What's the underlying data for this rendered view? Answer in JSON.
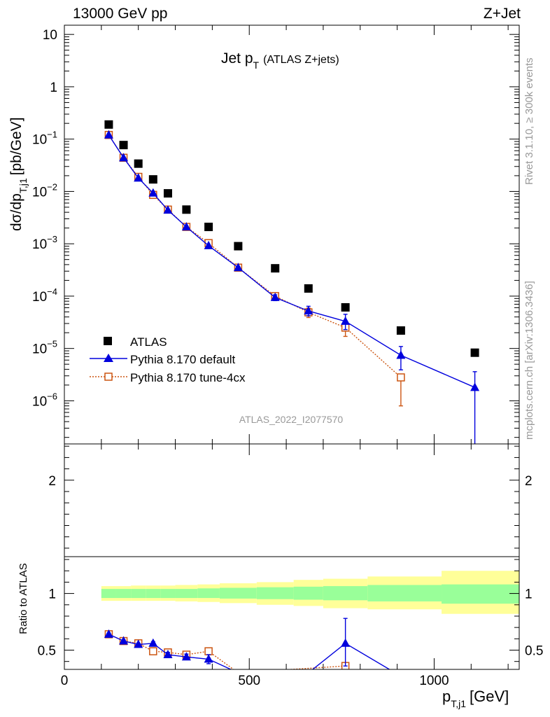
{
  "header": {
    "left": "13000 GeV pp",
    "right": "Z+Jet"
  },
  "side_labels": {
    "rivet": "Rivet 3.1.10, ≥ 300k events",
    "mcplots": "mcplots.cern.ch [arXiv:1306.3436]"
  },
  "chart_data": [
    {
      "type": "scatter",
      "title": "Jet p",
      "title_sub": "T",
      "title_suffix": "(ATLAS Z+jets)",
      "analysis_id": "ATLAS_2022_I2077570",
      "ylabel": "dσ/dp",
      "ylabel_sub": "T,j1",
      "ylabel_unit": "[pb/GeV]",
      "yscale": "log",
      "xlim": [
        0,
        1230
      ],
      "ylim": [
        1.5e-07,
        15
      ],
      "ytick_labels": [
        {
          "v": 10,
          "m": "10",
          "e": ""
        },
        {
          "v": 1,
          "m": "1",
          "e": ""
        },
        {
          "v": 0.1,
          "m": "10",
          "e": "−1"
        },
        {
          "v": 0.01,
          "m": "10",
          "e": "−2"
        },
        {
          "v": 0.001,
          "m": "10",
          "e": "−3"
        },
        {
          "v": 0.0001,
          "m": "10",
          "e": "−4"
        },
        {
          "v": 1e-05,
          "m": "10",
          "e": "−5"
        },
        {
          "v": 1e-06,
          "m": "10",
          "e": "−6"
        }
      ],
      "legend": {
        "position": "bottom-left",
        "entries": [
          "ATLAS",
          "Pythia 8.170 default",
          "Pythia 8.170 tune-4cx"
        ]
      },
      "series": [
        {
          "name": "ATLAS",
          "color": "#000000",
          "marker": "square-filled",
          "x": [
            120,
            160,
            200,
            240,
            280,
            330,
            390,
            470,
            570,
            660,
            760,
            910,
            1110
          ],
          "y": [
            0.19,
            0.077,
            0.034,
            0.017,
            0.0092,
            0.0045,
            0.0021,
            0.0009,
            0.00034,
            0.00014,
            6.1e-05,
            2.2e-05,
            8.3e-06
          ]
        },
        {
          "name": "Pythia 8.170 default",
          "color": "#0000dd",
          "marker": "triangle-filled",
          "x": [
            120,
            160,
            200,
            240,
            280,
            330,
            390,
            470,
            570,
            660,
            760,
            910,
            1110
          ],
          "y": [
            0.12,
            0.044,
            0.018,
            0.0093,
            0.0044,
            0.0021,
            0.00092,
            0.00035,
            9.4e-05,
            5.2e-05,
            3.3e-05,
            7.4e-06,
            1.8e-06
          ],
          "yerr_lo": [
            0,
            0,
            0,
            0,
            0,
            0,
            0,
            0,
            1.2e-05,
            1e-05,
            1e-05,
            3.5e-06,
            1.7e-06
          ],
          "yerr_hi": [
            0,
            0,
            0,
            0,
            0,
            0,
            0,
            0,
            1.2e-05,
            1.2e-05,
            1.2e-05,
            3.5e-06,
            1.8e-06
          ]
        },
        {
          "name": "Pythia 8.170 tune-4cx",
          "color": "#cc5511",
          "marker": "square-open",
          "x": [
            120,
            160,
            200,
            240,
            280,
            330,
            390,
            470,
            570,
            660,
            760,
            910
          ],
          "y": [
            0.12,
            0.044,
            0.019,
            0.0086,
            0.0045,
            0.0021,
            0.00103,
            0.00035,
            0.0001,
            4.9e-05,
            2.5e-05,
            2.8e-06
          ],
          "yerr_lo": [
            0,
            0,
            0,
            0,
            0,
            0,
            0,
            0,
            8e-06,
            1e-05,
            8e-06,
            2e-06
          ],
          "yerr_hi": [
            0,
            0,
            0,
            0,
            0,
            0,
            0,
            0,
            8e-06,
            1e-05,
            8e-06,
            0
          ]
        }
      ]
    },
    {
      "type": "line",
      "ylabel": "Ratio to ATLAS",
      "xlabel": "p",
      "xlabel_sub": "T,j1",
      "xlabel_unit": "[GeV]",
      "xlim": [
        0,
        1230
      ],
      "ylim": [
        0.33,
        2.32
      ],
      "x_ticks": [
        0,
        500,
        1000
      ],
      "y_ticks": [
        0.5,
        1,
        2
      ],
      "bands": {
        "edges": [
          100,
          140,
          180,
          220,
          260,
          300,
          360,
          420,
          520,
          620,
          700,
          820,
          1020,
          1230
        ],
        "stat_lo": [
          0.96,
          0.96,
          0.96,
          0.96,
          0.96,
          0.96,
          0.96,
          0.955,
          0.95,
          0.945,
          0.94,
          0.93,
          0.91
        ],
        "stat_hi": [
          1.04,
          1.04,
          1.04,
          1.04,
          1.04,
          1.04,
          1.045,
          1.05,
          1.055,
          1.06,
          1.065,
          1.075,
          1.08
        ],
        "tot_lo": [
          0.935,
          0.935,
          0.935,
          0.935,
          0.935,
          0.93,
          0.925,
          0.915,
          0.9,
          0.89,
          0.87,
          0.86,
          0.82
        ],
        "tot_hi": [
          1.065,
          1.065,
          1.07,
          1.07,
          1.07,
          1.075,
          1.08,
          1.09,
          1.1,
          1.12,
          1.13,
          1.15,
          1.2
        ]
      },
      "series": [
        {
          "name": "Pythia 8.170 default",
          "color": "#0000dd",
          "marker": "triangle-filled",
          "x": [
            120,
            160,
            200,
            240,
            280,
            330,
            390,
            470,
            570,
            660,
            760,
            910
          ],
          "y": [
            0.64,
            0.58,
            0.55,
            0.56,
            0.46,
            0.44,
            0.42,
            0.3,
            0.27,
            0.3,
            0.56,
            0.27
          ],
          "yerr_lo": [
            0.01,
            0.01,
            0.01,
            0.015,
            0.02,
            0.025,
            0.04,
            0,
            0,
            0,
            0.2,
            0
          ],
          "yerr_hi": [
            0.01,
            0.01,
            0.01,
            0.015,
            0.02,
            0.025,
            0.04,
            0,
            0,
            0,
            0.22,
            0
          ]
        },
        {
          "name": "Pythia 8.170 tune-4cx",
          "color": "#cc5511",
          "marker": "square-open",
          "x": [
            120,
            160,
            200,
            240,
            280,
            330,
            390,
            470,
            760
          ],
          "y": [
            0.64,
            0.58,
            0.56,
            0.49,
            0.48,
            0.46,
            0.49,
            0.3,
            0.36
          ],
          "yerr_lo": [
            0,
            0,
            0,
            0,
            0,
            0,
            0,
            0,
            0
          ],
          "yerr_hi": [
            0,
            0,
            0,
            0,
            0,
            0,
            0,
            0,
            0
          ]
        }
      ]
    }
  ]
}
